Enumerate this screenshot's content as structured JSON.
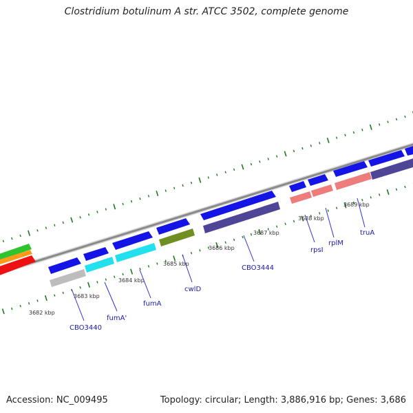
{
  "title": "Clostridium botulinum A str. ATCC 3502, complete genome",
  "footer": {
    "accession": "Accession: NC_009495",
    "summary": "Topology: circular; Length: 3,886,916 bp; Genes: 3,686"
  },
  "colors": {
    "backbone": "#8a8a8a",
    "forward": "#1414e6",
    "tick": "#1a7a1a",
    "label": "#1a1aa8",
    "leader": "#3030d0"
  },
  "kbp_labels": [
    "3682 kbp",
    "3683 kbp",
    "3684 kbp",
    "3685 kbp",
    "3686 kbp",
    "3687 kbp",
    "3688 kbp",
    "3689 kbp"
  ],
  "gene_labels": [
    "CBO3440",
    "fumA'",
    "fumA",
    "cwlD",
    "CBO3444",
    "rpsI",
    "rplM",
    "truA"
  ],
  "features": [
    {
      "track": "forward",
      "color": "#1414e6"
    },
    {
      "track": "forward",
      "color": "#1414e6"
    },
    {
      "track": "forward",
      "color": "#1414e6"
    },
    {
      "track": "forward",
      "color": "#1414e6"
    },
    {
      "track": "forward",
      "color": "#1414e6"
    },
    {
      "track": "forward",
      "color": "#1414e6"
    },
    {
      "track": "forward",
      "color": "#1414e6"
    },
    {
      "track": "forward",
      "color": "#1414e6"
    },
    {
      "track": "forward",
      "color": "#1414e6"
    },
    {
      "track": "forward",
      "color": "#1414e6"
    },
    {
      "track": "lower",
      "color": "#bdbdbd"
    },
    {
      "track": "lower",
      "color": "#22e0ee"
    },
    {
      "track": "lower",
      "color": "#22e0ee"
    },
    {
      "track": "lower",
      "color": "#6f8f22"
    },
    {
      "track": "lower",
      "color": "#4e4596"
    },
    {
      "track": "lower",
      "color": "#ee7c7c"
    },
    {
      "track": "lower",
      "color": "#ee7c7c"
    },
    {
      "track": "lower",
      "color": "#ee7c7c"
    },
    {
      "track": "lower",
      "color": "#4e4596"
    },
    {
      "track": "left",
      "color": "#2ec42e"
    },
    {
      "track": "left",
      "color": "#ff9a1a"
    },
    {
      "track": "left",
      "color": "#ee1111"
    }
  ]
}
